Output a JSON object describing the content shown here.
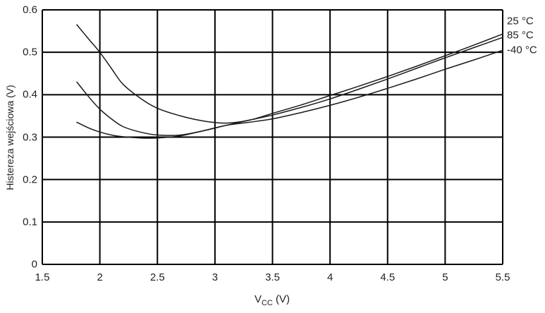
{
  "colors": {
    "grid": "#000000",
    "curve": "#1a1a1a",
    "text": "#231f20",
    "background": "#ffffff"
  },
  "chart_data": {
    "type": "line",
    "title": "",
    "ylabel": "Histereza wejściowa (V)",
    "xlabel_main": "V",
    "xlabel_sub": "CC",
    "xlabel_rest": " (V)",
    "xlim": [
      1.5,
      5.5
    ],
    "ylim": [
      0,
      0.6
    ],
    "grid": true,
    "legend_position": "right-outside-top",
    "xticks": [
      1.5,
      2,
      2.5,
      3,
      3.5,
      4,
      4.5,
      5,
      5.5
    ],
    "xtick_labels": [
      "1.5",
      "2",
      "2.5",
      "3",
      "3.5",
      "4",
      "4.5",
      "5",
      "5.5"
    ],
    "yticks": [
      0,
      0.1,
      0.2,
      0.3,
      0.4,
      0.5,
      0.6
    ],
    "ytick_labels": [
      "0",
      "0.1",
      "0.2",
      "0.3",
      "0.4",
      "0.5",
      "0.6"
    ],
    "series": [
      {
        "name": "25 °C",
        "x": [
          1.8,
          1.9,
          2.0,
          2.1,
          2.2,
          2.35,
          2.5,
          2.7,
          2.9,
          3.1,
          3.3,
          3.5,
          3.75,
          4.0,
          4.25,
          4.5,
          4.75,
          5.0,
          5.25,
          5.5
        ],
        "y": [
          0.565,
          0.532,
          0.5,
          0.462,
          0.425,
          0.392,
          0.368,
          0.35,
          0.338,
          0.333,
          0.34,
          0.356,
          0.376,
          0.398,
          0.42,
          0.443,
          0.467,
          0.492,
          0.517,
          0.543
        ]
      },
      {
        "name": "85 °C",
        "x": [
          1.8,
          1.9,
          2.0,
          2.1,
          2.2,
          2.35,
          2.5,
          2.7,
          2.9,
          3.1,
          3.3,
          3.5,
          3.75,
          4.0,
          4.25,
          4.5,
          4.75,
          5.0,
          5.25,
          5.5
        ],
        "y": [
          0.43,
          0.396,
          0.366,
          0.343,
          0.325,
          0.312,
          0.305,
          0.305,
          0.315,
          0.328,
          0.34,
          0.352,
          0.37,
          0.39,
          0.413,
          0.437,
          0.462,
          0.487,
          0.511,
          0.535
        ]
      },
      {
        "name": "-40 °C",
        "x": [
          1.8,
          1.9,
          2.0,
          2.1,
          2.2,
          2.35,
          2.5,
          2.7,
          2.9,
          3.1,
          3.3,
          3.5,
          3.75,
          4.0,
          4.25,
          4.5,
          4.75,
          5.0,
          5.25,
          5.5
        ],
        "y": [
          0.335,
          0.322,
          0.312,
          0.305,
          0.301,
          0.298,
          0.298,
          0.303,
          0.315,
          0.328,
          0.335,
          0.343,
          0.358,
          0.375,
          0.394,
          0.415,
          0.437,
          0.46,
          0.482,
          0.505
        ]
      }
    ]
  }
}
